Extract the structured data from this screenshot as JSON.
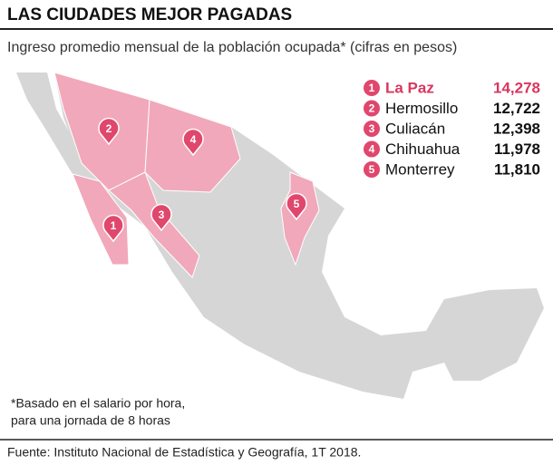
{
  "header": {
    "title": "LAS CIUDADES MEJOR PAGADAS",
    "subtitle": "Ingreso promedio mensual de la población ocupada* (cifras en pesos)"
  },
  "ranking": {
    "items": [
      {
        "rank": "1",
        "city": "La Paz",
        "value": "14,278"
      },
      {
        "rank": "2",
        "city": "Hermosillo",
        "value": "12,722"
      },
      {
        "rank": "3",
        "city": "Culiacán",
        "value": "12,398"
      },
      {
        "rank": "4",
        "city": "Chihuahua",
        "value": "11,978"
      },
      {
        "rank": "5",
        "city": "Monterrey",
        "value": "11,810"
      }
    ]
  },
  "footnote": {
    "line1": "*Basado en el salario por hora,",
    "line2": "para una jornada de 8 horas"
  },
  "source": "Fuente: Instituto Nacional de Estadística y Geografía, 1T 2018."
}
